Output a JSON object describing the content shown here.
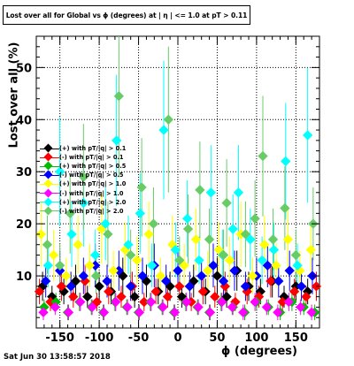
{
  "chart_data": {
    "type": "scatter",
    "title": "Lost over all for Global vs ϕ (degrees) at | η | <= 1.0 at pT > 0.11",
    "xlabel": "ϕ (degrees)",
    "ylabel": "Lost over all (%)",
    "xlim": [
      -180,
      180
    ],
    "ylim": [
      0,
      56
    ],
    "xticks": [
      "-150",
      "-100",
      "-50",
      "0",
      "50",
      "100",
      "150"
    ],
    "yticks": [
      "10",
      "20",
      "30",
      "40",
      "50"
    ],
    "grid": true,
    "legend_position": "left",
    "series": [
      {
        "name": "(+) with pT/|q| > 0.1",
        "color": "#000000",
        "points": [
          [
            -172,
            8
          ],
          [
            -160,
            6
          ],
          [
            -145,
            7
          ],
          [
            -130,
            9
          ],
          [
            -115,
            6
          ],
          [
            -100,
            8
          ],
          [
            -85,
            7
          ],
          [
            -70,
            10
          ],
          [
            -55,
            6
          ],
          [
            -40,
            9
          ],
          [
            -25,
            7
          ],
          [
            -10,
            8
          ],
          [
            5,
            6
          ],
          [
            20,
            9
          ],
          [
            35,
            7
          ],
          [
            50,
            10
          ],
          [
            62,
            6
          ],
          [
            75,
            11
          ],
          [
            90,
            8
          ],
          [
            105,
            7
          ],
          [
            120,
            9
          ],
          [
            135,
            6
          ],
          [
            150,
            8
          ],
          [
            165,
            7
          ]
        ]
      },
      {
        "name": "(-) with pT/|q| > 0.1",
        "color": "#ff0000",
        "points": [
          [
            -176,
            7
          ],
          [
            -162,
            5
          ],
          [
            -148,
            8
          ],
          [
            -133,
            6
          ],
          [
            -118,
            9
          ],
          [
            -103,
            5
          ],
          [
            -88,
            7
          ],
          [
            -72,
            6
          ],
          [
            -58,
            8
          ],
          [
            -43,
            5
          ],
          [
            -28,
            7
          ],
          [
            -13,
            6
          ],
          [
            2,
            8
          ],
          [
            17,
            5
          ],
          [
            32,
            7
          ],
          [
            47,
            6
          ],
          [
            60,
            8
          ],
          [
            73,
            5
          ],
          [
            88,
            7
          ],
          [
            103,
            6
          ],
          [
            118,
            9
          ],
          [
            133,
            5
          ],
          [
            148,
            7
          ],
          [
            163,
            6
          ],
          [
            176,
            8
          ]
        ]
      },
      {
        "name": "(+) with pT/|q| > 0.5",
        "color": "#00bb00",
        "points": [
          [
            -170,
            4
          ],
          [
            -155,
            5
          ],
          [
            -140,
            3
          ],
          [
            -125,
            5
          ],
          [
            -110,
            4
          ],
          [
            -95,
            3
          ],
          [
            -80,
            5
          ],
          [
            -65,
            4
          ],
          [
            -50,
            3
          ],
          [
            -35,
            5
          ],
          [
            -20,
            4
          ],
          [
            -5,
            3
          ],
          [
            10,
            5
          ],
          [
            25,
            4
          ],
          [
            40,
            3
          ],
          [
            55,
            5
          ],
          [
            70,
            4
          ],
          [
            85,
            3
          ],
          [
            100,
            5
          ],
          [
            115,
            4
          ],
          [
            130,
            3
          ],
          [
            145,
            5
          ],
          [
            160,
            4
          ],
          [
            174,
            3
          ]
        ]
      },
      {
        "name": "(-) with pT/|q| > 0.5",
        "color": "#0000ff",
        "points": [
          [
            -168,
            9
          ],
          [
            -150,
            11
          ],
          [
            -136,
            8
          ],
          [
            -120,
            10
          ],
          [
            -105,
            12
          ],
          [
            -90,
            9
          ],
          [
            -75,
            11
          ],
          [
            -60,
            8
          ],
          [
            -45,
            10
          ],
          [
            -30,
            12
          ],
          [
            -15,
            9
          ],
          [
            0,
            11
          ],
          [
            15,
            8
          ],
          [
            30,
            10
          ],
          [
            45,
            12
          ],
          [
            58,
            9
          ],
          [
            72,
            11
          ],
          [
            86,
            8
          ],
          [
            100,
            10
          ],
          [
            114,
            12
          ],
          [
            128,
            9
          ],
          [
            142,
            11
          ],
          [
            157,
            8
          ],
          [
            171,
            10
          ]
        ]
      },
      {
        "name": "(+) with pT/|q| > 1.0",
        "color": "#ffff00",
        "points": [
          [
            -174,
            18
          ],
          [
            -158,
            14
          ],
          [
            -142,
            10
          ],
          [
            -127,
            16
          ],
          [
            -112,
            12
          ],
          [
            -97,
            19
          ],
          [
            -82,
            11
          ],
          [
            -67,
            15
          ],
          [
            -52,
            13
          ],
          [
            -37,
            18
          ],
          [
            -22,
            10
          ],
          [
            -7,
            16
          ],
          [
            8,
            12
          ],
          [
            23,
            17
          ],
          [
            38,
            11
          ],
          [
            52,
            15
          ],
          [
            66,
            13
          ],
          [
            80,
            18
          ],
          [
            95,
            10
          ],
          [
            110,
            16
          ],
          [
            125,
            12
          ],
          [
            140,
            17
          ],
          [
            155,
            11
          ],
          [
            169,
            15
          ]
        ]
      },
      {
        "name": "(-) with pT/|q| > 1.0",
        "color": "#ff00ff",
        "points": [
          [
            -171,
            3
          ],
          [
            -156,
            4
          ],
          [
            -139,
            3
          ],
          [
            -124,
            5
          ],
          [
            -109,
            4
          ],
          [
            -94,
            3
          ],
          [
            -79,
            5
          ],
          [
            -64,
            4
          ],
          [
            -49,
            3
          ],
          [
            -34,
            5
          ],
          [
            -19,
            4
          ],
          [
            -4,
            3
          ],
          [
            11,
            5
          ],
          [
            26,
            4
          ],
          [
            41,
            3
          ],
          [
            56,
            5
          ],
          [
            69,
            4
          ],
          [
            83,
            3
          ],
          [
            98,
            5
          ],
          [
            113,
            4
          ],
          [
            127,
            3
          ],
          [
            141,
            5
          ],
          [
            156,
            4
          ],
          [
            170,
            3
          ]
        ]
      },
      {
        "name": "(+) with pT/|q| > 2.0",
        "color": "#00ffff",
        "points": [
          [
            -165,
            12
          ],
          [
            -150,
            30
          ],
          [
            -135,
            18
          ],
          [
            -120,
            24
          ],
          [
            -105,
            14
          ],
          [
            -92,
            20
          ],
          [
            -78,
            36
          ],
          [
            -63,
            16
          ],
          [
            -48,
            22
          ],
          [
            -33,
            12
          ],
          [
            -18,
            38
          ],
          [
            -3,
            15
          ],
          [
            12,
            21
          ],
          [
            27,
            13
          ],
          [
            42,
            26
          ],
          [
            57,
            14
          ],
          [
            70,
            19
          ],
          [
            77,
            26
          ],
          [
            92,
            17
          ],
          [
            107,
            13
          ],
          [
            122,
            15
          ],
          [
            137,
            32
          ],
          [
            152,
            12
          ],
          [
            165,
            37
          ]
        ]
      },
      {
        "name": "(-) with pT/|q| > 2.0",
        "color": "#66cc66",
        "points": [
          [
            -166,
            16
          ],
          [
            -150,
            12
          ],
          [
            -137,
            22
          ],
          [
            -120,
            29
          ],
          [
            -104,
            10
          ],
          [
            -89,
            18
          ],
          [
            -75,
            44.5
          ],
          [
            -60,
            14
          ],
          [
            -46,
            27
          ],
          [
            -31,
            20
          ],
          [
            -12,
            40
          ],
          [
            2,
            13
          ],
          [
            13,
            19
          ],
          [
            28,
            26.5
          ],
          [
            40,
            17
          ],
          [
            58,
            14
          ],
          [
            62,
            24
          ],
          [
            86,
            18
          ],
          [
            98,
            21
          ],
          [
            108,
            33
          ],
          [
            121,
            17
          ],
          [
            136,
            23
          ],
          [
            150,
            14
          ],
          [
            172,
            20
          ]
        ]
      }
    ]
  },
  "footer": {
    "timestamp": "Sat Jun 30 13:58:57 2018"
  }
}
